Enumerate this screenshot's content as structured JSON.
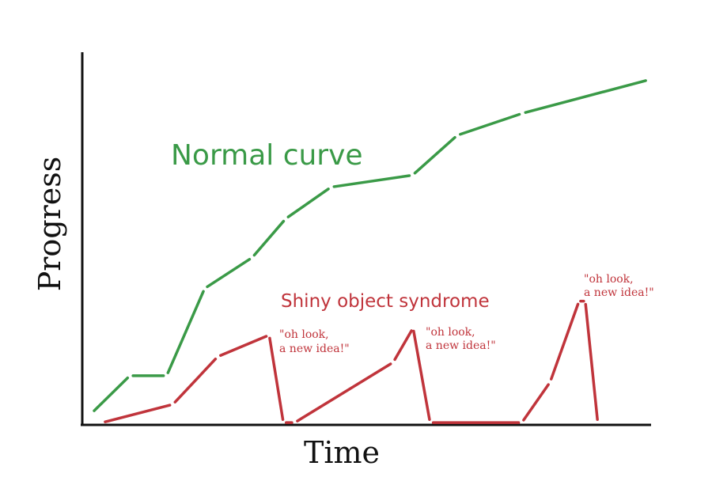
{
  "chart_data": {
    "type": "line",
    "xlabel": "Time",
    "ylabel": "Progress",
    "xlim": [
      0,
      100
    ],
    "ylim": [
      0,
      100
    ],
    "grid": false,
    "series": [
      {
        "name": "Normal curve",
        "color": "#3a9a47",
        "x": [
          1.7,
          8.4,
          14.9,
          21.6,
          30.0,
          35.9,
          43.9,
          58.3,
          66.2,
          77.7,
          100
        ],
        "y": [
          3.2,
          13.2,
          13.2,
          36.6,
          44.9,
          55.3,
          63.8,
          67.0,
          77.7,
          83.6,
          92.6
        ]
      },
      {
        "name": "Shiny object syndrome",
        "color": "#c0343b",
        "x": [
          3.5,
          16.0,
          23.9,
          33.0,
          35.5,
          37.5,
          54.9,
          58.4,
          61.4,
          77.6,
          82.6,
          87.7,
          88.8,
          91.0
        ],
        "y": [
          0.6,
          5.5,
          18.3,
          24.1,
          0.6,
          0.6,
          16.8,
          26.0,
          0.6,
          0.6,
          11.5,
          33.2,
          33.2,
          0.6
        ]
      }
    ],
    "annotations": [
      {
        "line1": "\"oh look,",
        "line2": "a new idea!\""
      },
      {
        "line1": "\"oh look,",
        "line2": "a new idea!\""
      },
      {
        "line1": "\"oh look,",
        "line2": "a new idea!\""
      }
    ]
  }
}
